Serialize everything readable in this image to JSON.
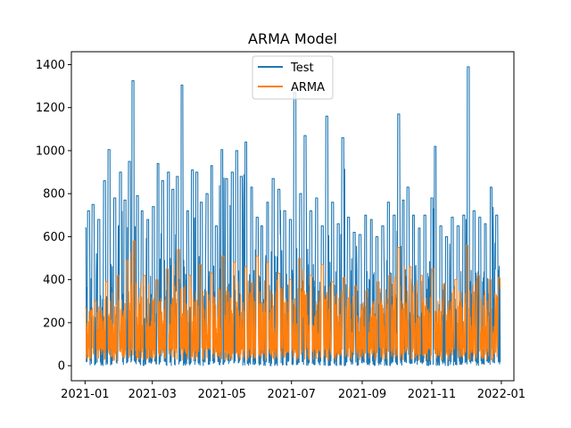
{
  "chart_data": {
    "type": "line",
    "title": "ARMA Model",
    "xlabel": "",
    "ylabel": "",
    "x_range": [
      "2020-12-20",
      "2022-01-12"
    ],
    "ylim": [
      -70,
      1460
    ],
    "x_ticks": [
      "2021-01",
      "2021-03",
      "2021-05",
      "2021-07",
      "2021-09",
      "2021-11",
      "2022-01"
    ],
    "y_ticks": [
      0,
      200,
      400,
      600,
      800,
      1000,
      1200,
      1400
    ],
    "legend_position": "upper-center",
    "grid": false,
    "series": [
      {
        "name": "Test",
        "color": "#1f77b4",
        "peaks": [
          [
            "2021-01-01",
            640
          ],
          [
            "2021-01-04",
            720
          ],
          [
            "2021-01-08",
            750
          ],
          [
            "2021-01-13",
            680
          ],
          [
            "2021-01-18",
            860
          ],
          [
            "2021-01-22",
            1005
          ],
          [
            "2021-01-27",
            780
          ],
          [
            "2021-02-01",
            900
          ],
          [
            "2021-02-05",
            770
          ],
          [
            "2021-02-09",
            950
          ],
          [
            "2021-02-12",
            1325
          ],
          [
            "2021-02-16",
            790
          ],
          [
            "2021-02-20",
            720
          ],
          [
            "2021-02-25",
            680
          ],
          [
            "2021-03-02",
            740
          ],
          [
            "2021-03-06",
            940
          ],
          [
            "2021-03-10",
            860
          ],
          [
            "2021-03-15",
            900
          ],
          [
            "2021-03-19",
            820
          ],
          [
            "2021-03-23",
            880
          ],
          [
            "2021-03-27",
            1305
          ],
          [
            "2021-04-01",
            720
          ],
          [
            "2021-04-05",
            910
          ],
          [
            "2021-04-09",
            900
          ],
          [
            "2021-04-13",
            760
          ],
          [
            "2021-04-18",
            800
          ],
          [
            "2021-04-22",
            930
          ],
          [
            "2021-04-26",
            650
          ],
          [
            "2021-05-01",
            1005
          ],
          [
            "2021-05-05",
            870
          ],
          [
            "2021-05-10",
            900
          ],
          [
            "2021-05-14",
            1000
          ],
          [
            "2021-05-18",
            880
          ],
          [
            "2021-05-22",
            1040
          ],
          [
            "2021-05-27",
            830
          ],
          [
            "2021-06-01",
            690
          ],
          [
            "2021-06-05",
            650
          ],
          [
            "2021-06-10",
            760
          ],
          [
            "2021-06-15",
            870
          ],
          [
            "2021-06-20",
            820
          ],
          [
            "2021-06-25",
            720
          ],
          [
            "2021-06-30",
            680
          ],
          [
            "2021-07-04",
            1270
          ],
          [
            "2021-07-09",
            800
          ],
          [
            "2021-07-13",
            1070
          ],
          [
            "2021-07-18",
            720
          ],
          [
            "2021-07-23",
            780
          ],
          [
            "2021-07-28",
            650
          ],
          [
            "2021-08-01",
            1160
          ],
          [
            "2021-08-06",
            760
          ],
          [
            "2021-08-11",
            660
          ],
          [
            "2021-08-15",
            1060
          ],
          [
            "2021-08-20",
            690
          ],
          [
            "2021-08-25",
            620
          ],
          [
            "2021-08-30",
            610
          ],
          [
            "2021-09-04",
            700
          ],
          [
            "2021-09-09",
            680
          ],
          [
            "2021-09-14",
            600
          ],
          [
            "2021-09-19",
            650
          ],
          [
            "2021-09-24",
            760
          ],
          [
            "2021-09-29",
            700
          ],
          [
            "2021-10-03",
            1170
          ],
          [
            "2021-10-07",
            770
          ],
          [
            "2021-10-11",
            830
          ],
          [
            "2021-10-16",
            700
          ],
          [
            "2021-10-21",
            640
          ],
          [
            "2021-10-26",
            700
          ],
          [
            "2021-11-01",
            780
          ],
          [
            "2021-11-04",
            1020
          ],
          [
            "2021-11-09",
            650
          ],
          [
            "2021-11-14",
            600
          ],
          [
            "2021-11-19",
            690
          ],
          [
            "2021-11-24",
            650
          ],
          [
            "2021-11-29",
            700
          ],
          [
            "2021-12-03",
            1390
          ],
          [
            "2021-12-08",
            720
          ],
          [
            "2021-12-13",
            690
          ],
          [
            "2021-12-18",
            660
          ],
          [
            "2021-12-23",
            830
          ],
          [
            "2021-12-28",
            700
          ]
        ]
      },
      {
        "name": "ARMA",
        "color": "#ff7f0e",
        "peaks": [
          [
            "2021-01-01",
            270
          ],
          [
            "2021-01-10",
            300
          ],
          [
            "2021-01-20",
            390
          ],
          [
            "2021-01-30",
            420
          ],
          [
            "2021-02-07",
            490
          ],
          [
            "2021-02-13",
            580
          ],
          [
            "2021-02-22",
            420
          ],
          [
            "2021-03-05",
            400
          ],
          [
            "2021-03-14",
            450
          ],
          [
            "2021-03-24",
            540
          ],
          [
            "2021-04-03",
            420
          ],
          [
            "2021-04-12",
            470
          ],
          [
            "2021-04-22",
            430
          ],
          [
            "2021-05-02",
            510
          ],
          [
            "2021-05-12",
            480
          ],
          [
            "2021-05-22",
            460
          ],
          [
            "2021-06-01",
            510
          ],
          [
            "2021-06-10",
            480
          ],
          [
            "2021-06-20",
            430
          ],
          [
            "2021-06-30",
            400
          ],
          [
            "2021-07-08",
            500
          ],
          [
            "2021-07-18",
            420
          ],
          [
            "2021-07-28",
            470
          ],
          [
            "2021-08-06",
            390
          ],
          [
            "2021-08-16",
            410
          ],
          [
            "2021-08-26",
            370
          ],
          [
            "2021-09-05",
            350
          ],
          [
            "2021-09-15",
            390
          ],
          [
            "2021-09-25",
            420
          ],
          [
            "2021-10-03",
            550
          ],
          [
            "2021-10-13",
            460
          ],
          [
            "2021-10-23",
            420
          ],
          [
            "2021-11-02",
            450
          ],
          [
            "2021-11-12",
            380
          ],
          [
            "2021-11-22",
            400
          ],
          [
            "2021-12-02",
            560
          ],
          [
            "2021-12-12",
            420
          ],
          [
            "2021-12-22",
            400
          ],
          [
            "2021-12-30",
            410
          ]
        ]
      }
    ]
  }
}
